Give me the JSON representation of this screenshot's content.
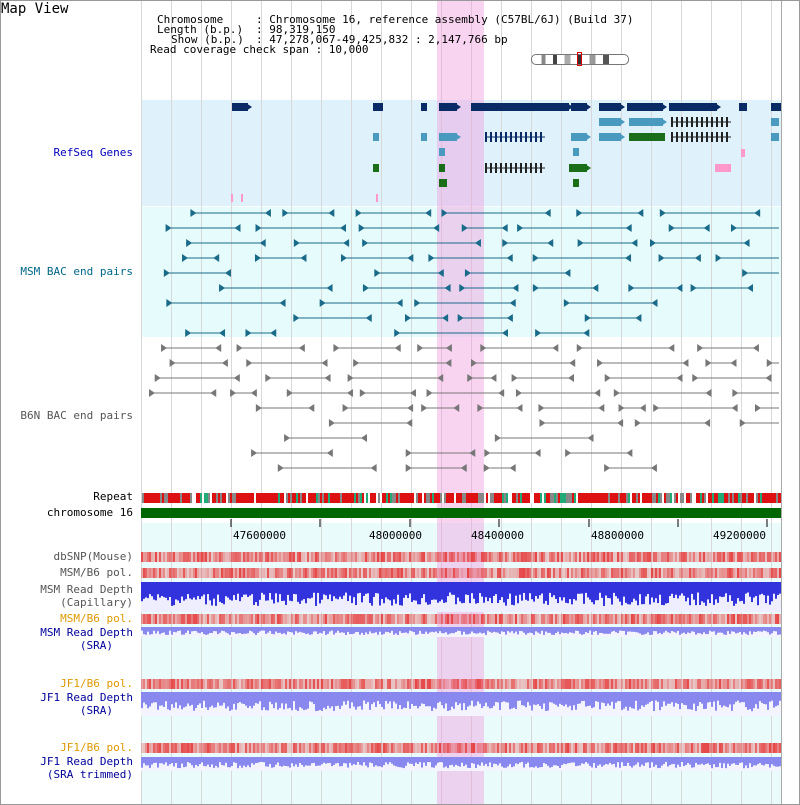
{
  "title": "Map View",
  "info": {
    "chromosome_key": "Chromosome",
    "chromosome_val": ": Chromosome 16, reference assembly (C57BL/6J) (Build 37)",
    "length_key": "Length (b.p.)",
    "length_val": ": 98,319,150",
    "show_key": "Show (b.p.)",
    "show_val": ": 47,278,067-49,425,832 : 2,147,766 bp",
    "coverage_line": "Read coverage check span : 10,000"
  },
  "labels": {
    "refseq": "RefSeq Genes",
    "msm_bac": "MSM BAC end pairs",
    "b6n_bac": "B6N BAC end pairs",
    "repeat": "Repeat",
    "chromosome": "chromosome 16",
    "dbsnp": "dbSNP(Mouse)",
    "msm_b6_pol_1": "MSM/B6 pol.",
    "msm_read_depth_cap_1": "MSM Read Depth",
    "msm_read_depth_cap_2": "(Capillary)",
    "msm_b6_pol_2": "MSM/B6 pol.",
    "msm_read_depth_sra_1": "MSM Read Depth",
    "msm_read_depth_sra_2": "(SRA)",
    "jf1_b6_pol_1": "JF1/B6 pol.",
    "jf1_read_depth_1": "JF1 Read Depth",
    "jf1_read_depth_2": "(SRA)",
    "jf1_b6_pol_2": "JF1/B6 pol.",
    "jf1_trim_1": "JF1 Read Depth",
    "jf1_trim_2": "(SRA trimmed)"
  },
  "axis": {
    "ticks": [
      "47600000",
      "48000000",
      "48400000",
      "48800000",
      "49200000"
    ]
  },
  "colors": {
    "refseq_dark": "#0a2a66",
    "refseq_light": "#4a9ac0",
    "refseq_green": "#1a6e1a",
    "pink": "#ff99cc",
    "bac_teal": "#1a6a8a",
    "bac_gray": "#777777",
    "repeat_red": "#dd1111",
    "chrom_green": "#006600",
    "depth_blue": "#3333dd",
    "depth_light": "#8888ee",
    "highlight": "#f0a0e1"
  }
}
